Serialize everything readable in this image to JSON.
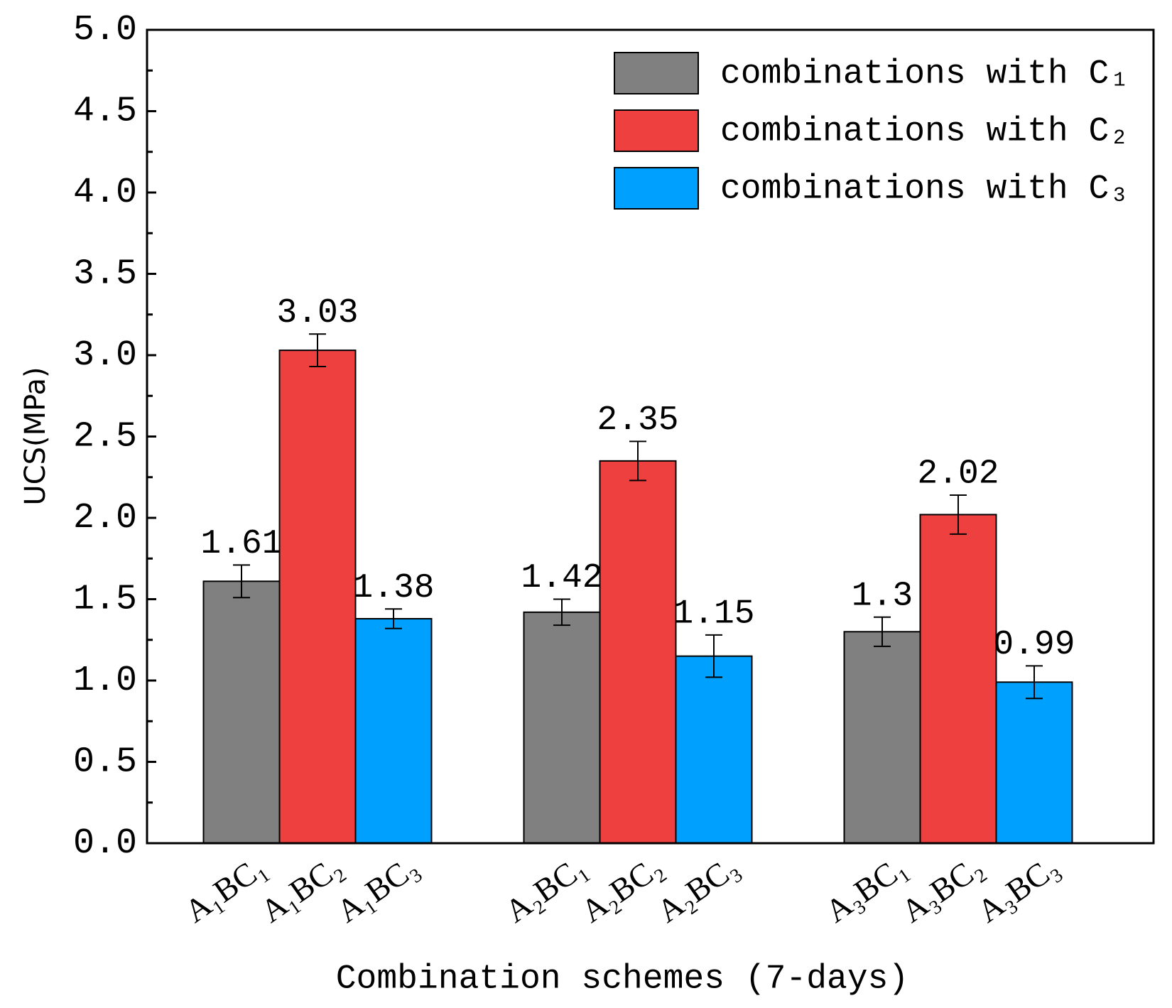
{
  "chart_data": {
    "type": "bar",
    "xlabel": "Combination schemes (7-days)",
    "ylabel": "UCS(MPa)",
    "ylim": [
      0,
      5
    ],
    "yticks": [
      {
        "value": 0,
        "label": "0.0"
      },
      {
        "value": 0.5,
        "label": "0.5"
      },
      {
        "value": 1,
        "label": "1.0"
      },
      {
        "value": 1.5,
        "label": "1.5"
      },
      {
        "value": 2,
        "label": "2.0"
      },
      {
        "value": 2.5,
        "label": "2.5"
      },
      {
        "value": 3,
        "label": "3.0"
      },
      {
        "value": 3.5,
        "label": "3.5"
      },
      {
        "value": 4,
        "label": "4.0"
      },
      {
        "value": 4.5,
        "label": "4.5"
      },
      {
        "value": 5,
        "label": "5.0"
      }
    ],
    "yminorticks": [
      0.25,
      0.75,
      1.25,
      1.75,
      2.25,
      2.75,
      3.25,
      3.75,
      4.25,
      4.75
    ],
    "legend": "upper right",
    "series": [
      {
        "name": "combinations with C₁",
        "color": "#808080",
        "categories": [
          "A₁BC₁",
          "A₂BC₁",
          "A₃BC₁"
        ],
        "values": [
          1.61,
          1.42,
          1.3
        ],
        "errors": [
          0.1,
          0.08,
          0.09
        ]
      },
      {
        "name": "combinations with C₂",
        "color": "#ef4040",
        "categories": [
          "A₁BC₂",
          "A₂BC₂",
          "A₃BC₂"
        ],
        "values": [
          3.03,
          2.35,
          2.02
        ],
        "errors": [
          0.1,
          0.12,
          0.12
        ]
      },
      {
        "name": "combinations with C₃",
        "color": "#00a0ff",
        "categories": [
          "A₁BC₃",
          "A₂BC₃",
          "A₃BC₃"
        ],
        "values": [
          1.38,
          1.15,
          0.99
        ],
        "errors": [
          0.06,
          0.13,
          0.1
        ]
      }
    ]
  }
}
